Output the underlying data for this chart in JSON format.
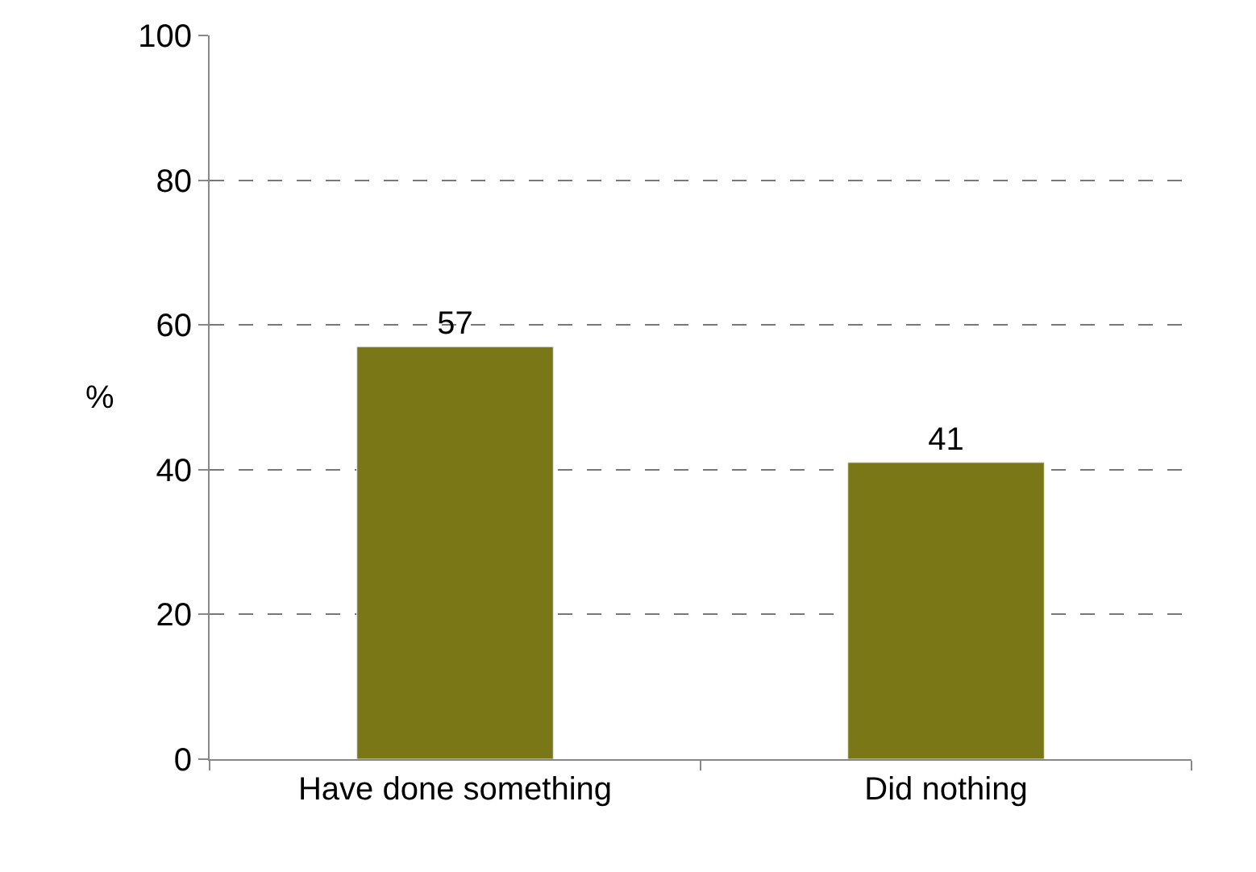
{
  "chart_data": {
    "type": "bar",
    "ylabel": "%",
    "categories": [
      "Have done something",
      "Did nothing"
    ],
    "values": [
      57,
      41
    ],
    "color": "#7a7816",
    "ylim": [
      0,
      100
    ],
    "yticks": [
      0,
      20,
      40,
      60,
      80,
      100
    ],
    "grid": "y",
    "data_labels": true,
    "legend": false
  }
}
